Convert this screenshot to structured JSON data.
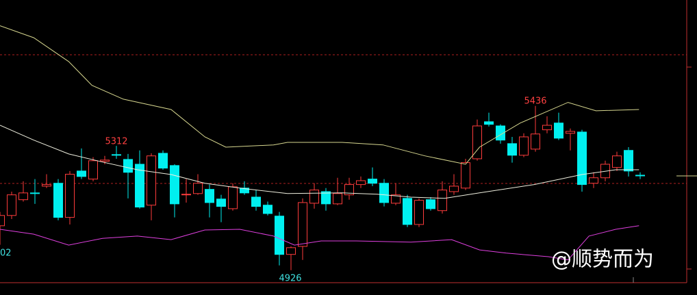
{
  "chart_data": {
    "type": "candlestick",
    "open": [
      5064,
      5096,
      5145,
      5166,
      5187,
      5196,
      5090,
      5234,
      5209,
      5264,
      5285,
      5270,
      5255,
      5128,
      5289,
      5251,
      5160,
      5164,
      5177,
      5147,
      5117,
      5181,
      5153,
      5128,
      5094,
      4975,
      5000,
      5134,
      5170,
      5132,
      5160,
      5192,
      5209,
      5196,
      5134,
      5149,
      5068,
      5145,
      5111,
      5170,
      5181,
      5272,
      5387,
      5374,
      5319,
      5283,
      5302,
      5362,
      5383,
      5351,
      5355,
      5196,
      5213,
      5245,
      5298,
      5221
    ],
    "high": [
      5107,
      5170,
      5202,
      5209,
      5224,
      5209,
      5234,
      5304,
      5277,
      5281,
      5312,
      5287,
      5298,
      5289,
      5298,
      5255,
      5209,
      5224,
      5192,
      5160,
      5196,
      5202,
      5175,
      5139,
      5107,
      5000,
      5149,
      5196,
      5181,
      5213,
      5213,
      5217,
      5245,
      5209,
      5196,
      5160,
      5149,
      5153,
      5202,
      5224,
      5272,
      5394,
      5415,
      5379,
      5340,
      5351,
      5436,
      5404,
      5415,
      5366,
      5362,
      5230,
      5266,
      5294,
      5308,
      5230
    ],
    "low": [
      5005,
      5085,
      5139,
      5132,
      5181,
      5081,
      5068,
      5209,
      5202,
      5255,
      5272,
      5149,
      5117,
      5081,
      5238,
      5090,
      5136,
      5160,
      5090,
      5075,
      5111,
      5160,
      5111,
      5096,
      4941,
      4926,
      4958,
      5117,
      5111,
      5128,
      5145,
      5181,
      5187,
      5124,
      5128,
      5060,
      5060,
      5111,
      5102,
      5160,
      5175,
      5266,
      5372,
      5319,
      5260,
      5277,
      5294,
      5351,
      5330,
      5298,
      5170,
      5181,
      5202,
      5234,
      5217,
      5209
    ],
    "close": [
      5096,
      5160,
      5166,
      5166,
      5192,
      5090,
      5224,
      5217,
      5266,
      5268,
      5283,
      5230,
      5122,
      5281,
      5243,
      5132,
      5162,
      5196,
      5136,
      5124,
      5185,
      5166,
      5124,
      5102,
      4975,
      4996,
      5136,
      5175,
      5132,
      5164,
      5192,
      5204,
      5196,
      5136,
      5160,
      5068,
      5143,
      5117,
      5175,
      5187,
      5260,
      5374,
      5379,
      5330,
      5283,
      5340,
      5349,
      5376,
      5336,
      5357,
      5192,
      5213,
      5255,
      5281,
      5234,
      5221
    ],
    "up_color": "#ff3c3c",
    "down_color": "#00f0f0",
    "lines": [
      {
        "color": "#d8d890",
        "x": [
          0,
          2.9,
          5.9,
          7.9,
          10.6,
          14.7,
          17.6,
          19.4,
          23.5,
          24.7,
          29.4,
          32.9,
          36.5,
          40,
          41.2,
          44.7,
          48.8,
          51.2,
          54.9
        ],
        "values": [
          5685,
          5648,
          5574,
          5500,
          5457,
          5425,
          5340,
          5308,
          5315,
          5323,
          5323,
          5315,
          5281,
          5255,
          5308,
          5383,
          5447,
          5421,
          5425
        ]
      },
      {
        "color": "#f0f0e0",
        "x": [
          0,
          2.9,
          5.9,
          8.8,
          11.8,
          14.7,
          17.6,
          20.6,
          24.7,
          29.4,
          32.4,
          35.3,
          38.2,
          41.2,
          45.9,
          50,
          52.9,
          54.9
        ],
        "values": [
          5376,
          5330,
          5287,
          5262,
          5238,
          5223,
          5196,
          5181,
          5164,
          5166,
          5162,
          5153,
          5149,
          5166,
          5192,
          5223,
          5238,
          5238
        ]
      },
      {
        "color": "#e040e0",
        "x": [
          0,
          2.9,
          5.9,
          8.8,
          11.8,
          14.7,
          17.6,
          20.6,
          23.5,
          25.3,
          27.6,
          30.6,
          35.3,
          38.8,
          41.2,
          43.5,
          47.1,
          48.8,
          50.6,
          52.9,
          54.9
        ],
        "values": [
          5053,
          5038,
          5004,
          5025,
          5032,
          5021,
          5051,
          5053,
          5032,
          5004,
          5017,
          5017,
          5013,
          5021,
          4989,
          4979,
          4968,
          4958,
          5032,
          5053,
          5064
        ]
      }
    ],
    "ylim": [
      4849,
      5765
    ],
    "annotations": [
      {
        "text": "5312"
      },
      {
        "text": "5436"
      },
      {
        "text": "4926"
      },
      {
        "text": "02"
      }
    ],
    "watermark": "@顺势而为"
  }
}
